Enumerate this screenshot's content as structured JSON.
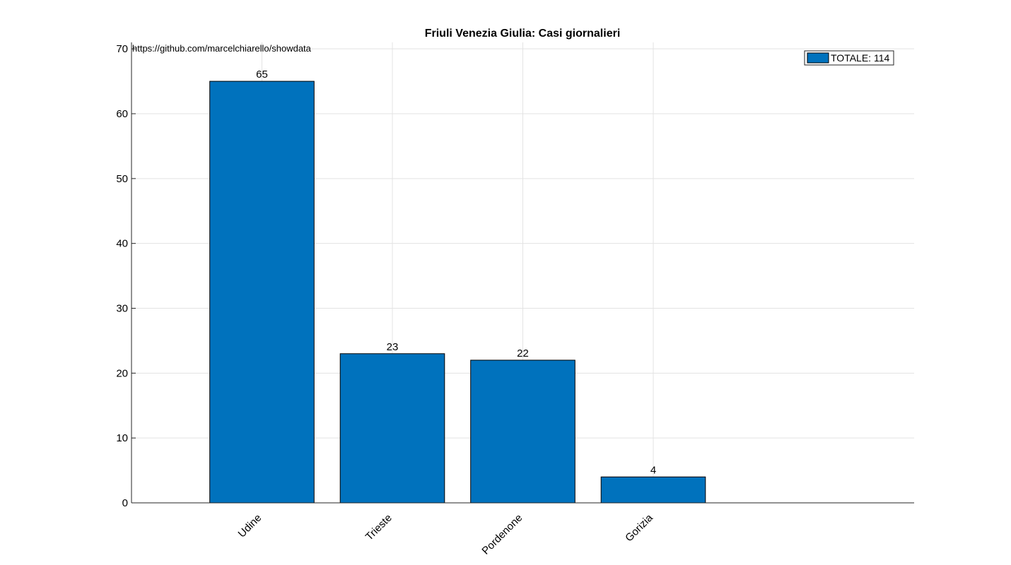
{
  "chart_data": {
    "type": "bar",
    "title": "Friuli Venezia Giulia: Casi giornalieri",
    "annotation": "https://github.com/marcelchiarello/showdata",
    "categories": [
      "Udine",
      "Trieste",
      "Pordenone",
      "Gorizia"
    ],
    "series": [
      {
        "name": "TOTALE: 114",
        "values": [
          65,
          23,
          22,
          4
        ],
        "color": "#0072bd"
      }
    ],
    "data_labels": [
      "65",
      "23",
      "22",
      "4"
    ],
    "xlim": [
      0,
      6
    ],
    "ylim": [
      0,
      71
    ],
    "yticks": [
      0,
      10,
      20,
      30,
      40,
      50,
      60,
      70
    ],
    "ytick_labels": [
      "0",
      "10",
      "20",
      "30",
      "40",
      "50",
      "60",
      "70"
    ],
    "xlabel": "",
    "ylabel": "",
    "grid": true,
    "legend_position": "top-right"
  }
}
